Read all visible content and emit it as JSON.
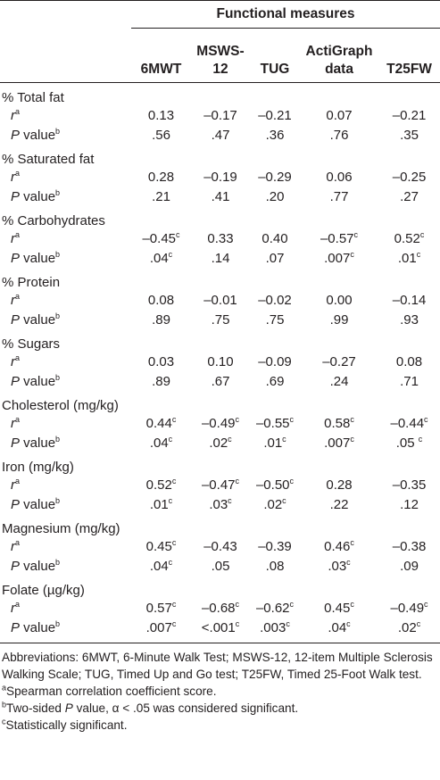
{
  "header": {
    "group_title": "Functional measures",
    "columns": [
      {
        "line1": "6MWT",
        "line2": ""
      },
      {
        "line1": "MSWS-",
        "line2": "12"
      },
      {
        "line1": "TUG",
        "line2": ""
      },
      {
        "line1": "ActiGraph",
        "line2": "data"
      },
      {
        "line1": "T25FW",
        "line2": ""
      }
    ]
  },
  "row_labels": {
    "r": "r",
    "r_mark": "a",
    "p": "P",
    "p_rest": " value",
    "p_mark": "b"
  },
  "groups": [
    {
      "name": "% Total fat",
      "r": [
        {
          "v": "0.13",
          "s": ""
        },
        {
          "v": "–0.17",
          "s": ""
        },
        {
          "v": "–0.21",
          "s": ""
        },
        {
          "v": "0.07",
          "s": ""
        },
        {
          "v": "–0.21",
          "s": ""
        }
      ],
      "p": [
        {
          "v": ".56",
          "s": ""
        },
        {
          "v": ".47",
          "s": ""
        },
        {
          "v": ".36",
          "s": ""
        },
        {
          "v": ".76",
          "s": ""
        },
        {
          "v": ".35",
          "s": ""
        }
      ]
    },
    {
      "name": "% Saturated fat",
      "r": [
        {
          "v": "0.28",
          "s": ""
        },
        {
          "v": "–0.19",
          "s": ""
        },
        {
          "v": "–0.29",
          "s": ""
        },
        {
          "v": "0.06",
          "s": ""
        },
        {
          "v": "–0.25",
          "s": ""
        }
      ],
      "p": [
        {
          "v": ".21",
          "s": ""
        },
        {
          "v": ".41",
          "s": ""
        },
        {
          "v": ".20",
          "s": ""
        },
        {
          "v": ".77",
          "s": ""
        },
        {
          "v": ".27",
          "s": ""
        }
      ]
    },
    {
      "name": "% Carbohydrates",
      "r": [
        {
          "v": "–0.45",
          "s": "c"
        },
        {
          "v": "0.33",
          "s": ""
        },
        {
          "v": "0.40",
          "s": ""
        },
        {
          "v": "–0.57",
          "s": "c"
        },
        {
          "v": "0.52",
          "s": "c"
        }
      ],
      "p": [
        {
          "v": ".04",
          "s": "c"
        },
        {
          "v": ".14",
          "s": ""
        },
        {
          "v": ".07",
          "s": ""
        },
        {
          "v": ".007",
          "s": "c"
        },
        {
          "v": ".01",
          "s": "c"
        }
      ]
    },
    {
      "name": "% Protein",
      "r": [
        {
          "v": "0.08",
          "s": ""
        },
        {
          "v": "–0.01",
          "s": ""
        },
        {
          "v": "–0.02",
          "s": ""
        },
        {
          "v": "0.00",
          "s": ""
        },
        {
          "v": "–0.14",
          "s": ""
        }
      ],
      "p": [
        {
          "v": ".89",
          "s": ""
        },
        {
          "v": ".75",
          "s": ""
        },
        {
          "v": ".75",
          "s": ""
        },
        {
          "v": ".99",
          "s": ""
        },
        {
          "v": ".93",
          "s": ""
        }
      ]
    },
    {
      "name": "% Sugars",
      "r": [
        {
          "v": "0.03",
          "s": ""
        },
        {
          "v": "0.10",
          "s": ""
        },
        {
          "v": "–0.09",
          "s": ""
        },
        {
          "v": "–0.27",
          "s": ""
        },
        {
          "v": "0.08",
          "s": ""
        }
      ],
      "p": [
        {
          "v": ".89",
          "s": ""
        },
        {
          "v": ".67",
          "s": ""
        },
        {
          "v": ".69",
          "s": ""
        },
        {
          "v": ".24",
          "s": ""
        },
        {
          "v": ".71",
          "s": ""
        }
      ]
    },
    {
      "name": "Cholesterol (mg/kg)",
      "r": [
        {
          "v": "0.44",
          "s": "c"
        },
        {
          "v": "–0.49",
          "s": "c"
        },
        {
          "v": "–0.55",
          "s": "c"
        },
        {
          "v": "0.58",
          "s": "c"
        },
        {
          "v": "–0.44",
          "s": "c"
        }
      ],
      "p": [
        {
          "v": ".04",
          "s": "c"
        },
        {
          "v": ".02",
          "s": "c"
        },
        {
          "v": ".01",
          "s": "c"
        },
        {
          "v": ".007",
          "s": "c"
        },
        {
          "v": ".05 ",
          "s": "c"
        }
      ]
    },
    {
      "name": "Iron (mg/kg)",
      "r": [
        {
          "v": "0.52",
          "s": "c"
        },
        {
          "v": "–0.47",
          "s": "c"
        },
        {
          "v": "–0.50",
          "s": "c"
        },
        {
          "v": "0.28",
          "s": ""
        },
        {
          "v": "–0.35",
          "s": ""
        }
      ],
      "p": [
        {
          "v": ".01",
          "s": "c"
        },
        {
          "v": ".03",
          "s": "c"
        },
        {
          "v": ".02",
          "s": "c"
        },
        {
          "v": ".22",
          "s": ""
        },
        {
          "v": ".12",
          "s": ""
        }
      ]
    },
    {
      "name": "Magnesium (mg/kg)",
      "r": [
        {
          "v": "0.45",
          "s": "c"
        },
        {
          "v": "–0.43",
          "s": ""
        },
        {
          "v": "–0.39",
          "s": ""
        },
        {
          "v": "0.46",
          "s": "c"
        },
        {
          "v": "–0.38",
          "s": ""
        }
      ],
      "p": [
        {
          "v": ".04",
          "s": "c"
        },
        {
          "v": ".05",
          "s": ""
        },
        {
          "v": ".08",
          "s": ""
        },
        {
          "v": ".03",
          "s": "c"
        },
        {
          "v": ".09",
          "s": ""
        }
      ]
    },
    {
      "name": "Folate (µg/kg)",
      "r": [
        {
          "v": "0.57",
          "s": "c"
        },
        {
          "v": "–0.68",
          "s": "c"
        },
        {
          "v": "–0.62",
          "s": "c"
        },
        {
          "v": "0.45",
          "s": "c"
        },
        {
          "v": "–0.49",
          "s": "c"
        }
      ],
      "p": [
        {
          "v": ".007",
          "s": "c"
        },
        {
          "v": "<.001",
          "s": "c"
        },
        {
          "v": ".003",
          "s": "c"
        },
        {
          "v": ".04",
          "s": "c"
        },
        {
          "v": ".02",
          "s": "c"
        }
      ]
    }
  ],
  "footnotes": {
    "abbreviations": "Abbreviations: 6MWT, 6-Minute Walk Test; MSWS-12, 12-item Multiple Sclerosis Walking Scale; TUG, Timed Up and Go test; T25FW, Timed 25-Foot Walk test.",
    "a_mark": "a",
    "a_text": "Spearman correlation coefficient score.",
    "b_mark": "b",
    "b_text_pre": "Two-sided ",
    "b_text_p": "P",
    "b_text_post": " value, α < .05 was considered significant.",
    "c_mark": "c",
    "c_text": "Statistically significant."
  }
}
